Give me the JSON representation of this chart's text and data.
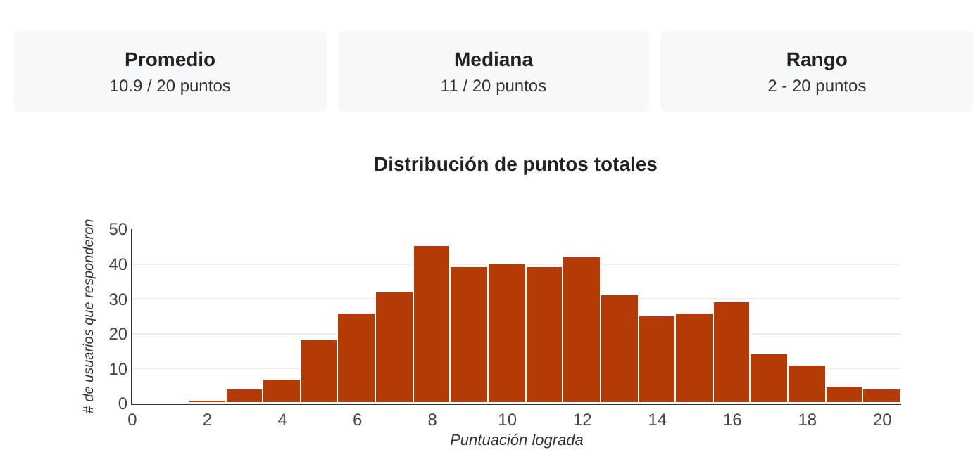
{
  "chart_data": {
    "type": "histogram",
    "title": "Distribución de puntos totales",
    "xlabel": "Puntuación lograda",
    "ylabel": "# de usuarios que responderon",
    "annotations": [
      "Promedio",
      "10.9 / 20 puntos",
      "Mediana",
      "11 / 20 puntos",
      "Rango",
      "2 - 20 puntos"
    ],
    "bins": [
      1.5,
      2.5,
      3.5,
      4.5,
      5.5,
      6.5,
      7.5,
      8.5,
      9.5,
      10.5,
      11.5,
      12.5,
      13.5,
      14.5,
      15.5,
      16.5,
      17.5,
      18.5,
      19.5,
      20.5
    ],
    "values": [
      1,
      4,
      7,
      18,
      26,
      32,
      45,
      39,
      40,
      39,
      42,
      31,
      25,
      26,
      29,
      14,
      11,
      5,
      4
    ],
    "color": "#b33c06",
    "xlim": [
      0,
      20.5
    ],
    "xticks": [
      0,
      2,
      4,
      6,
      8,
      10,
      12,
      14,
      16,
      18,
      20
    ],
    "ylim": [
      0,
      50
    ],
    "yticks": [
      0,
      10,
      20,
      30,
      40,
      50
    ],
    "grid": "y"
  }
}
